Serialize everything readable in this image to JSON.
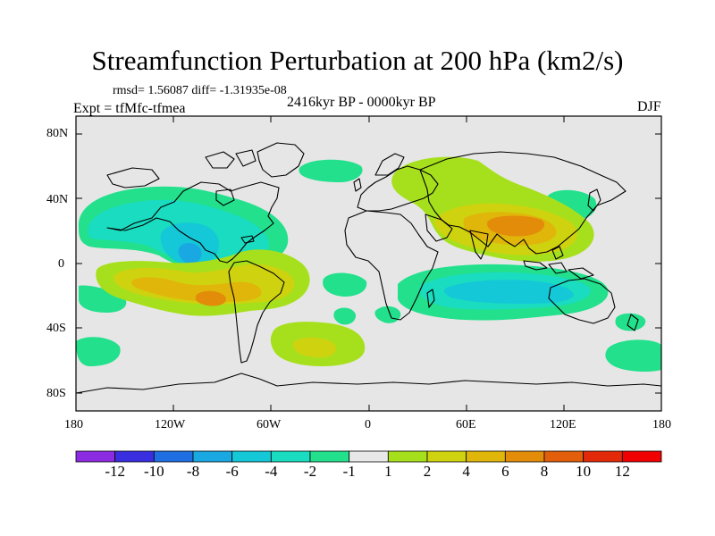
{
  "title": "Streamfunction Perturbation at 200 hPa (km2/s)",
  "stats": "rmsd= 1.56087 diff= -1.31935e-08",
  "experiment": "Expt = tfMfc-tfmea",
  "period": "2416kyr BP - 0000kyr BP",
  "season": "DJF",
  "lat_ticks": [
    "80N",
    "40N",
    "0",
    "40S",
    "80S"
  ],
  "lon_ticks": [
    "180",
    "120W",
    "60W",
    "0",
    "60E",
    "120E",
    "180"
  ],
  "colorbar": {
    "labels": [
      "-12",
      "-10",
      "-8",
      "-6",
      "-4",
      "-2",
      "-1",
      "1",
      "2",
      "4",
      "6",
      "8",
      "10",
      "12"
    ],
    "colors": [
      "#8b2be2",
      "#3a2fe0",
      "#1f6fe3",
      "#1aa8e3",
      "#14c8d8",
      "#1adcc0",
      "#22e08c",
      "#e8e8e8",
      "#a6e01c",
      "#cfd20f",
      "#e0b60a",
      "#e28c0a",
      "#e25e0a",
      "#e22a0a",
      "#f00000"
    ]
  },
  "map_colors": {
    "background": "#e6e6e6",
    "neg1": "#22e08c",
    "neg2": "#1adcc0",
    "neg3": "#14c8d8",
    "neg4": "#1aa8e3",
    "pos1": "#a6e01c",
    "pos2": "#cfd20f",
    "pos3": "#e0b60a",
    "pos4": "#e28c0a",
    "coast": "#000000"
  }
}
